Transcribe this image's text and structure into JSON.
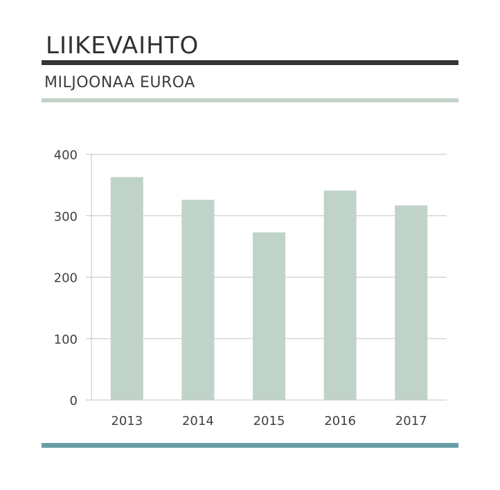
{
  "header": {
    "title": "LIIKEVAIHTO",
    "subtitle": "MILJOONAA EUROA"
  },
  "colors": {
    "bar": "#c0d3c8",
    "grid": "#bfc3c7",
    "title_rule": "#333436",
    "subtitle_rule": "#c4d3c9",
    "bottom_rule": "#6a9ea6"
  },
  "chart_data": {
    "type": "bar",
    "categories": [
      "2013",
      "2014",
      "2015",
      "2016",
      "2017"
    ],
    "values": [
      363,
      326,
      273,
      341,
      317
    ],
    "title": "LIIKEVAIHTO",
    "subtitle": "MILJOONAA EUROA",
    "xlabel": "",
    "ylabel": "",
    "ylim": [
      0,
      400
    ],
    "yticks": [
      0,
      100,
      200,
      300,
      400
    ],
    "grid": true,
    "legend": "none"
  }
}
